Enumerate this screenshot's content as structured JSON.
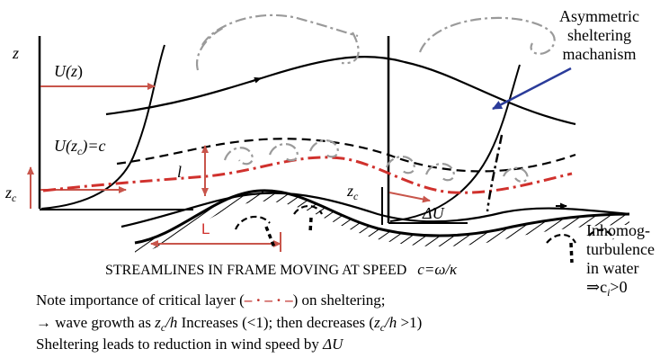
{
  "labels": {
    "z_axis": "z",
    "U_of_z_U": "U(",
    "U_of_z_z": "z",
    "U_of_z_close": ")",
    "Uzc_U": "U(z",
    "Uzc_sub": "c",
    "Uzc_rest": ")=c",
    "zc_left_z": "z",
    "zc_left_sub": "c",
    "zc_right_z": "z",
    "zc_right_sub": "c",
    "l_label": "l",
    "L_label": "L",
    "delta_u": "ΔU",
    "asym_line1": "Asymmetric",
    "asym_line2": "sheltering",
    "asym_line3": "machanism",
    "inhom_line1": "Inhomog-",
    "inhom_line2": "turbulence",
    "inhom_line3": "in water",
    "inhom_line4_prefix": "⇒c",
    "inhom_line4_sub": "i",
    "inhom_line4_suffix": ">0"
  },
  "caption": {
    "text": "STREAMLINES IN FRAME MOVING AT SPEED",
    "speed": "c=ω/κ"
  },
  "notes": {
    "line1_prefix": "Note importance of critical layer (",
    "line1_legend": "‒ · ‒ · ‒",
    "line1_suffix": ") on sheltering;",
    "line2_a": "→ wave growth as ",
    "line2_z": "z",
    "line2_c": "c",
    "line2_h": "/h",
    "line2_b": " Increases (<1); then decreases (",
    "line2_z2": "z",
    "line2_c2": "c",
    "line2_h2": "/h",
    "line2_c_end": " >1)",
    "line3_a": "Sheltering leads to reduction in wind speed by ",
    "line3_delta": "ΔU"
  },
  "colors": {
    "critical_layer": "#d0312d",
    "velocity_arrow": "#c8554b",
    "mechanism_arrow": "#2b3c9a",
    "eddies": "#9a9a9a"
  }
}
